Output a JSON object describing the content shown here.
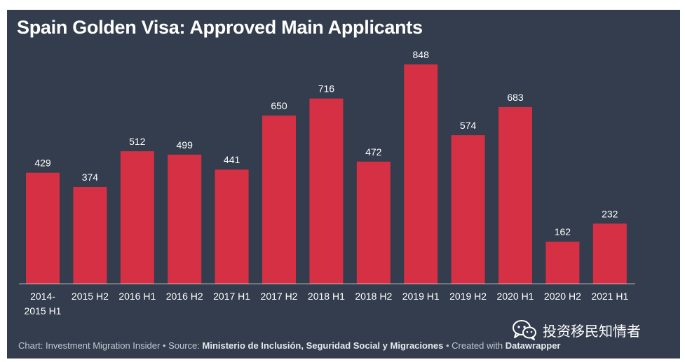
{
  "chart_data": {
    "type": "bar",
    "title": "Spain Golden Visa: Approved Main Applicants",
    "categories": [
      [
        "2014-",
        "2015 H1"
      ],
      [
        "2015 H2"
      ],
      [
        "2016 H1"
      ],
      [
        "2016 H2"
      ],
      [
        "2017 H1"
      ],
      [
        "2017 H2"
      ],
      [
        "2018 H1"
      ],
      [
        "2018 H2"
      ],
      [
        "2019 H1"
      ],
      [
        "2019 H2"
      ],
      [
        "2020 H1"
      ],
      [
        "2020 H2"
      ],
      [
        "2021 H1"
      ]
    ],
    "values": [
      429,
      374,
      512,
      499,
      441,
      650,
      716,
      472,
      848,
      574,
      683,
      162,
      232
    ],
    "ylim": [
      0,
      848
    ],
    "xlabel": "",
    "ylabel": "",
    "grid": false,
    "bar_color": "#d63044"
  },
  "footer": {
    "prefix": "Chart: Investment Migration Insider • Source: ",
    "source": "Ministerio de Inclusión, Seguridad Social y Migraciones",
    "middle": " • Created with ",
    "tool": "Datawrapper"
  },
  "watermark": {
    "icon": "wechat-icon",
    "text": "投资移民知情者"
  },
  "colors": {
    "background": "#333d4d",
    "bar": "#d63044",
    "text": "#ffffff"
  }
}
